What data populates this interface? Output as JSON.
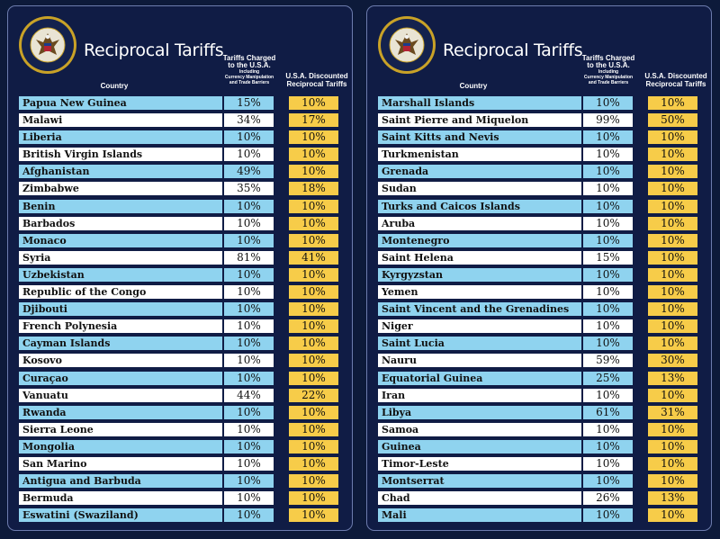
{
  "colors": {
    "background": "#0d1a3a",
    "panel": "#101c45",
    "row_blue": "#8fd3ef",
    "row_white": "#ffffff",
    "discount_yellow": "#f7cc49"
  },
  "panels": [
    {
      "title": "Reciprocal Tariffs",
      "headers": {
        "country": "Country",
        "charged_main_1": "Tariffs Charged",
        "charged_main_2": "to the U.S.A.",
        "charged_sub_1": "Including",
        "charged_sub_2": "Currency Manipulation",
        "charged_sub_3": "and Trade Barriers",
        "discount_1": "U.S.A. Discounted",
        "discount_2": "Reciprocal Tariffs"
      },
      "rows": [
        {
          "country": "Papua New Guinea",
          "charged": "15%",
          "discounted": "10%"
        },
        {
          "country": "Malawi",
          "charged": "34%",
          "discounted": "17%"
        },
        {
          "country": "Liberia",
          "charged": "10%",
          "discounted": "10%"
        },
        {
          "country": "British Virgin Islands",
          "charged": "10%",
          "discounted": "10%"
        },
        {
          "country": "Afghanistan",
          "charged": "49%",
          "discounted": "10%"
        },
        {
          "country": "Zimbabwe",
          "charged": "35%",
          "discounted": "18%"
        },
        {
          "country": "Benin",
          "charged": "10%",
          "discounted": "10%"
        },
        {
          "country": "Barbados",
          "charged": "10%",
          "discounted": "10%"
        },
        {
          "country": "Monaco",
          "charged": "10%",
          "discounted": "10%"
        },
        {
          "country": "Syria",
          "charged": "81%",
          "discounted": "41%"
        },
        {
          "country": "Uzbekistan",
          "charged": "10%",
          "discounted": "10%"
        },
        {
          "country": "Republic of the Congo",
          "charged": "10%",
          "discounted": "10%"
        },
        {
          "country": "Djibouti",
          "charged": "10%",
          "discounted": "10%"
        },
        {
          "country": "French Polynesia",
          "charged": "10%",
          "discounted": "10%"
        },
        {
          "country": "Cayman Islands",
          "charged": "10%",
          "discounted": "10%"
        },
        {
          "country": "Kosovo",
          "charged": "10%",
          "discounted": "10%"
        },
        {
          "country": "Curaçao",
          "charged": "10%",
          "discounted": "10%"
        },
        {
          "country": "Vanuatu",
          "charged": "44%",
          "discounted": "22%"
        },
        {
          "country": "Rwanda",
          "charged": "10%",
          "discounted": "10%"
        },
        {
          "country": "Sierra Leone",
          "charged": "10%",
          "discounted": "10%"
        },
        {
          "country": "Mongolia",
          "charged": "10%",
          "discounted": "10%"
        },
        {
          "country": "San Marino",
          "charged": "10%",
          "discounted": "10%"
        },
        {
          "country": "Antigua and Barbuda",
          "charged": "10%",
          "discounted": "10%"
        },
        {
          "country": "Bermuda",
          "charged": "10%",
          "discounted": "10%"
        },
        {
          "country": "Eswatini (Swaziland)",
          "charged": "10%",
          "discounted": "10%"
        }
      ]
    },
    {
      "title": "Reciprocal Tariffs",
      "headers": {
        "country": "Country",
        "charged_main_1": "Tariffs Charged",
        "charged_main_2": "to the U.S.A.",
        "charged_sub_1": "Including",
        "charged_sub_2": "Currency Manipulation",
        "charged_sub_3": "and Trade Barriers",
        "discount_1": "U.S.A. Discounted",
        "discount_2": "Reciprocal Tariffs"
      },
      "rows": [
        {
          "country": "Marshall Islands",
          "charged": "10%",
          "discounted": "10%"
        },
        {
          "country": "Saint Pierre and Miquelon",
          "charged": "99%",
          "discounted": "50%"
        },
        {
          "country": "Saint Kitts and Nevis",
          "charged": "10%",
          "discounted": "10%"
        },
        {
          "country": "Turkmenistan",
          "charged": "10%",
          "discounted": "10%"
        },
        {
          "country": "Grenada",
          "charged": "10%",
          "discounted": "10%"
        },
        {
          "country": "Sudan",
          "charged": "10%",
          "discounted": "10%"
        },
        {
          "country": "Turks and Caicos Islands",
          "charged": "10%",
          "discounted": "10%"
        },
        {
          "country": "Aruba",
          "charged": "10%",
          "discounted": "10%"
        },
        {
          "country": "Montenegro",
          "charged": "10%",
          "discounted": "10%"
        },
        {
          "country": "Saint Helena",
          "charged": "15%",
          "discounted": "10%"
        },
        {
          "country": "Kyrgyzstan",
          "charged": "10%",
          "discounted": "10%"
        },
        {
          "country": "Yemen",
          "charged": "10%",
          "discounted": "10%"
        },
        {
          "country": "Saint Vincent and the Grenadines",
          "charged": "10%",
          "discounted": "10%"
        },
        {
          "country": "Niger",
          "charged": "10%",
          "discounted": "10%"
        },
        {
          "country": "Saint Lucia",
          "charged": "10%",
          "discounted": "10%"
        },
        {
          "country": "Nauru",
          "charged": "59%",
          "discounted": "30%"
        },
        {
          "country": "Equatorial Guinea",
          "charged": "25%",
          "discounted": "13%"
        },
        {
          "country": "Iran",
          "charged": "10%",
          "discounted": "10%"
        },
        {
          "country": "Libya",
          "charged": "61%",
          "discounted": "31%"
        },
        {
          "country": "Samoa",
          "charged": "10%",
          "discounted": "10%"
        },
        {
          "country": "Guinea",
          "charged": "10%",
          "discounted": "10%"
        },
        {
          "country": "Timor-Leste",
          "charged": "10%",
          "discounted": "10%"
        },
        {
          "country": "Montserrat",
          "charged": "10%",
          "discounted": "10%"
        },
        {
          "country": "Chad",
          "charged": "26%",
          "discounted": "13%"
        },
        {
          "country": "Mali",
          "charged": "10%",
          "discounted": "10%"
        }
      ]
    }
  ]
}
